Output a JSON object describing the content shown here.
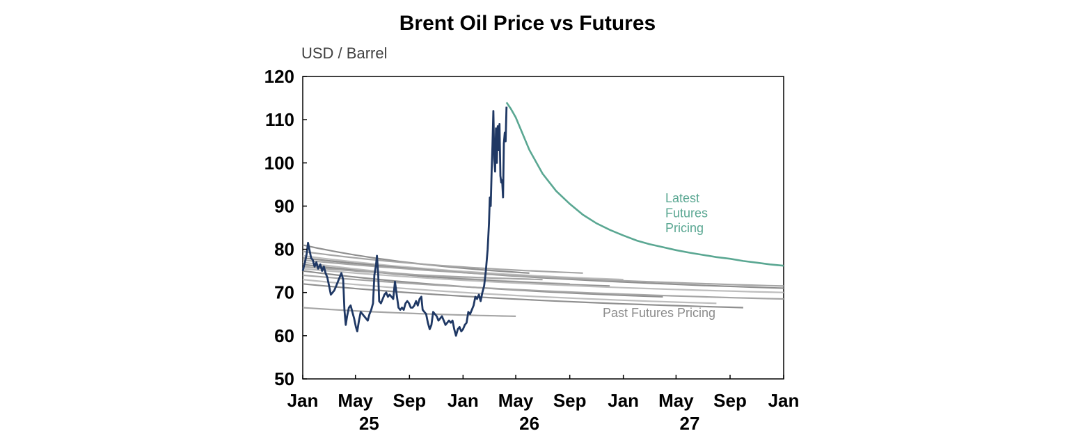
{
  "chart_data": {
    "type": "line",
    "title": "Brent Oil Price vs Futures",
    "ylabel": "USD / Barrel",
    "xlabel": "",
    "ylim": [
      50,
      120
    ],
    "yticks": [
      "50",
      "60",
      "70",
      "80",
      "90",
      "100",
      "110",
      "120"
    ],
    "xlim": [
      "2025-01-01",
      "2028-01-01"
    ],
    "xticks": [
      {
        "date": "2025-01-01",
        "label": "Jan"
      },
      {
        "date": "2025-05-01",
        "label": "May"
      },
      {
        "date": "2025-09-01",
        "label": "Sep"
      },
      {
        "date": "2026-01-01",
        "label": "Jan"
      },
      {
        "date": "2026-05-01",
        "label": "May"
      },
      {
        "date": "2026-09-01",
        "label": "Sep"
      },
      {
        "date": "2027-01-01",
        "label": "Jan"
      },
      {
        "date": "2027-05-01",
        "label": "May"
      },
      {
        "date": "2027-09-01",
        "label": "Sep"
      },
      {
        "date": "2028-01-01",
        "label": "Jan"
      }
    ],
    "year_labels": [
      {
        "date": "2025-06-01",
        "label": "25"
      },
      {
        "date": "2026-06-01",
        "label": "26"
      },
      {
        "date": "2027-06-01",
        "label": "27"
      }
    ],
    "grid": false,
    "colors": {
      "spot": "#1f3864",
      "latest": "#5aa792",
      "past": [
        "#8f8f8f",
        "#a6a6a6",
        "#bdbdbd"
      ]
    },
    "annotations": {
      "latest": [
        "Latest",
        "Futures",
        "Pricing"
      ],
      "past": "Past Futures Pricing"
    },
    "spot": [
      [
        "2025-01-01",
        75
      ],
      [
        "2025-01-06",
        77
      ],
      [
        "2025-01-10",
        79
      ],
      [
        "2025-01-13",
        81.5
      ],
      [
        "2025-01-16",
        80
      ],
      [
        "2025-01-20",
        78
      ],
      [
        "2025-01-24",
        77.5
      ],
      [
        "2025-01-28",
        76
      ],
      [
        "2025-02-01",
        77
      ],
      [
        "2025-02-05",
        75.5
      ],
      [
        "2025-02-10",
        76.5
      ],
      [
        "2025-02-14",
        75
      ],
      [
        "2025-02-18",
        76
      ],
      [
        "2025-02-22",
        74.5
      ],
      [
        "2025-02-26",
        73.5
      ],
      [
        "2025-03-02",
        71.5
      ],
      [
        "2025-03-06",
        69.5
      ],
      [
        "2025-03-10",
        70
      ],
      [
        "2025-03-14",
        70.5
      ],
      [
        "2025-03-18",
        71.5
      ],
      [
        "2025-03-22",
        72.5
      ],
      [
        "2025-03-26",
        73.5
      ],
      [
        "2025-03-30",
        74.5
      ],
      [
        "2025-04-03",
        73
      ],
      [
        "2025-04-06",
        66
      ],
      [
        "2025-04-09",
        62.5
      ],
      [
        "2025-04-12",
        64.5
      ],
      [
        "2025-04-16",
        66.5
      ],
      [
        "2025-04-20",
        67
      ],
      [
        "2025-04-24",
        65.5
      ],
      [
        "2025-04-28",
        64
      ],
      [
        "2025-05-02",
        62
      ],
      [
        "2025-05-05",
        61
      ],
      [
        "2025-05-09",
        63.5
      ],
      [
        "2025-05-13",
        65.5
      ],
      [
        "2025-05-17",
        65
      ],
      [
        "2025-05-21",
        64.5
      ],
      [
        "2025-05-25",
        64
      ],
      [
        "2025-05-29",
        63.5
      ],
      [
        "2025-06-02",
        65
      ],
      [
        "2025-06-06",
        66
      ],
      [
        "2025-06-10",
        67.5
      ],
      [
        "2025-06-13",
        74
      ],
      [
        "2025-06-17",
        76.5
      ],
      [
        "2025-06-19",
        78.5
      ],
      [
        "2025-06-22",
        74
      ],
      [
        "2025-06-24",
        68
      ],
      [
        "2025-06-28",
        67.5
      ],
      [
        "2025-07-02",
        68.5
      ],
      [
        "2025-07-06",
        69.5
      ],
      [
        "2025-07-10",
        70
      ],
      [
        "2025-07-14",
        69
      ],
      [
        "2025-07-18",
        69.5
      ],
      [
        "2025-07-22",
        69
      ],
      [
        "2025-07-26",
        68.5
      ],
      [
        "2025-07-30",
        72.5
      ],
      [
        "2025-08-03",
        69.5
      ],
      [
        "2025-08-07",
        66.5
      ],
      [
        "2025-08-11",
        66
      ],
      [
        "2025-08-15",
        66.5
      ],
      [
        "2025-08-19",
        66
      ],
      [
        "2025-08-23",
        67.5
      ],
      [
        "2025-08-27",
        68
      ],
      [
        "2025-08-31",
        67.5
      ],
      [
        "2025-09-04",
        66.5
      ],
      [
        "2025-09-08",
        66.5
      ],
      [
        "2025-09-12",
        67
      ],
      [
        "2025-09-16",
        68
      ],
      [
        "2025-09-20",
        67
      ],
      [
        "2025-09-24",
        68.5
      ],
      [
        "2025-09-28",
        69
      ],
      [
        "2025-10-01",
        66
      ],
      [
        "2025-10-05",
        65.5
      ],
      [
        "2025-10-09",
        65
      ],
      [
        "2025-10-13",
        63
      ],
      [
        "2025-10-17",
        61.5
      ],
      [
        "2025-10-21",
        62.5
      ],
      [
        "2025-10-25",
        65.5
      ],
      [
        "2025-10-29",
        65
      ],
      [
        "2025-11-02",
        64.5
      ],
      [
        "2025-11-06",
        63.5
      ],
      [
        "2025-11-10",
        64
      ],
      [
        "2025-11-14",
        64.5
      ],
      [
        "2025-11-18",
        63.5
      ],
      [
        "2025-11-22",
        62.5
      ],
      [
        "2025-11-26",
        63
      ],
      [
        "2025-11-30",
        63.5
      ],
      [
        "2025-12-04",
        63
      ],
      [
        "2025-12-08",
        63.5
      ],
      [
        "2025-12-12",
        61.5
      ],
      [
        "2025-12-16",
        60
      ],
      [
        "2025-12-20",
        61.5
      ],
      [
        "2025-12-24",
        62
      ],
      [
        "2025-12-28",
        61
      ],
      [
        "2026-01-01",
        61.5
      ],
      [
        "2026-01-05",
        62.5
      ],
      [
        "2026-01-09",
        63
      ],
      [
        "2026-01-13",
        65.5
      ],
      [
        "2026-01-17",
        65
      ],
      [
        "2026-01-21",
        66
      ],
      [
        "2026-01-25",
        67
      ],
      [
        "2026-01-29",
        69
      ],
      [
        "2026-02-02",
        68.5
      ],
      [
        "2026-02-06",
        69.5
      ],
      [
        "2026-02-10",
        68
      ],
      [
        "2026-02-14",
        70
      ],
      [
        "2026-02-18",
        71.5
      ],
      [
        "2026-02-22",
        75
      ],
      [
        "2026-02-26",
        80
      ],
      [
        "2026-03-01",
        86
      ],
      [
        "2026-03-03",
        92
      ],
      [
        "2026-03-05",
        90
      ],
      [
        "2026-03-07",
        98
      ],
      [
        "2026-03-09",
        104
      ],
      [
        "2026-03-11",
        112
      ],
      [
        "2026-03-13",
        101
      ],
      [
        "2026-03-15",
        98
      ],
      [
        "2026-03-17",
        108
      ],
      [
        "2026-03-19",
        100
      ],
      [
        "2026-03-21",
        108.5
      ],
      [
        "2026-03-23",
        103
      ],
      [
        "2026-03-25",
        109
      ],
      [
        "2026-03-27",
        97
      ],
      [
        "2026-03-29",
        95.5
      ],
      [
        "2026-03-31",
        96
      ],
      [
        "2026-04-02",
        92
      ],
      [
        "2026-04-04",
        104.5
      ],
      [
        "2026-04-06",
        107
      ],
      [
        "2026-04-08",
        105
      ],
      [
        "2026-04-10",
        113
      ]
    ],
    "latest_futures": [
      [
        "2026-04-10",
        114
      ],
      [
        "2026-04-20",
        112.5
      ],
      [
        "2026-05-01",
        110.5
      ],
      [
        "2026-06-01",
        103
      ],
      [
        "2026-07-01",
        97.5
      ],
      [
        "2026-08-01",
        93.5
      ],
      [
        "2026-09-01",
        90.5
      ],
      [
        "2026-10-01",
        88
      ],
      [
        "2026-11-01",
        86
      ],
      [
        "2026-12-01",
        84.5
      ],
      [
        "2027-01-01",
        83.2
      ],
      [
        "2027-02-01",
        82
      ],
      [
        "2027-03-01",
        81.2
      ],
      [
        "2027-04-01",
        80.5
      ],
      [
        "2027-05-01",
        79.8
      ],
      [
        "2027-06-01",
        79.2
      ],
      [
        "2027-07-01",
        78.7
      ],
      [
        "2027-08-01",
        78.2
      ],
      [
        "2027-09-01",
        77.8
      ],
      [
        "2027-10-01",
        77.3
      ],
      [
        "2027-11-01",
        76.9
      ],
      [
        "2027-12-01",
        76.5
      ],
      [
        "2028-01-01",
        76.2
      ]
    ],
    "past_futures": [
      {
        "start": [
          "2025-01-01",
          81
        ],
        "end": [
          "2026-06-01",
          74.5
        ]
      },
      {
        "start": [
          "2025-01-01",
          79.5
        ],
        "end": [
          "2026-10-01",
          74.5
        ]
      },
      {
        "start": [
          "2025-01-01",
          78.5
        ],
        "end": [
          "2027-01-01",
          73
        ]
      },
      {
        "start": [
          "2025-01-01",
          78
        ],
        "end": [
          "2028-01-01",
          71
        ]
      },
      {
        "start": [
          "2025-01-01",
          77.5
        ],
        "end": [
          "2028-01-01",
          71.5
        ]
      },
      {
        "start": [
          "2025-01-01",
          77
        ],
        "end": [
          "2026-09-01",
          72
        ]
      },
      {
        "start": [
          "2025-01-01",
          76.5
        ],
        "end": [
          "2026-12-01",
          71.5
        ]
      },
      {
        "start": [
          "2025-01-01",
          76
        ],
        "end": [
          "2026-07-01",
          73
        ]
      },
      {
        "start": [
          "2025-01-01",
          75.5
        ],
        "end": [
          "2028-01-01",
          70
        ]
      },
      {
        "start": [
          "2025-01-01",
          75
        ],
        "end": [
          "2027-04-01",
          69
        ]
      },
      {
        "start": [
          "2025-01-01",
          74
        ],
        "end": [
          "2028-01-01",
          68.5
        ]
      },
      {
        "start": [
          "2025-01-01",
          73
        ],
        "end": [
          "2027-08-01",
          67.5
        ]
      },
      {
        "start": [
          "2025-01-01",
          72
        ],
        "end": [
          "2027-10-01",
          66.5
        ]
      },
      {
        "start": [
          "2025-01-01",
          66.5
        ],
        "end": [
          "2026-05-01",
          64.5
        ]
      }
    ]
  }
}
